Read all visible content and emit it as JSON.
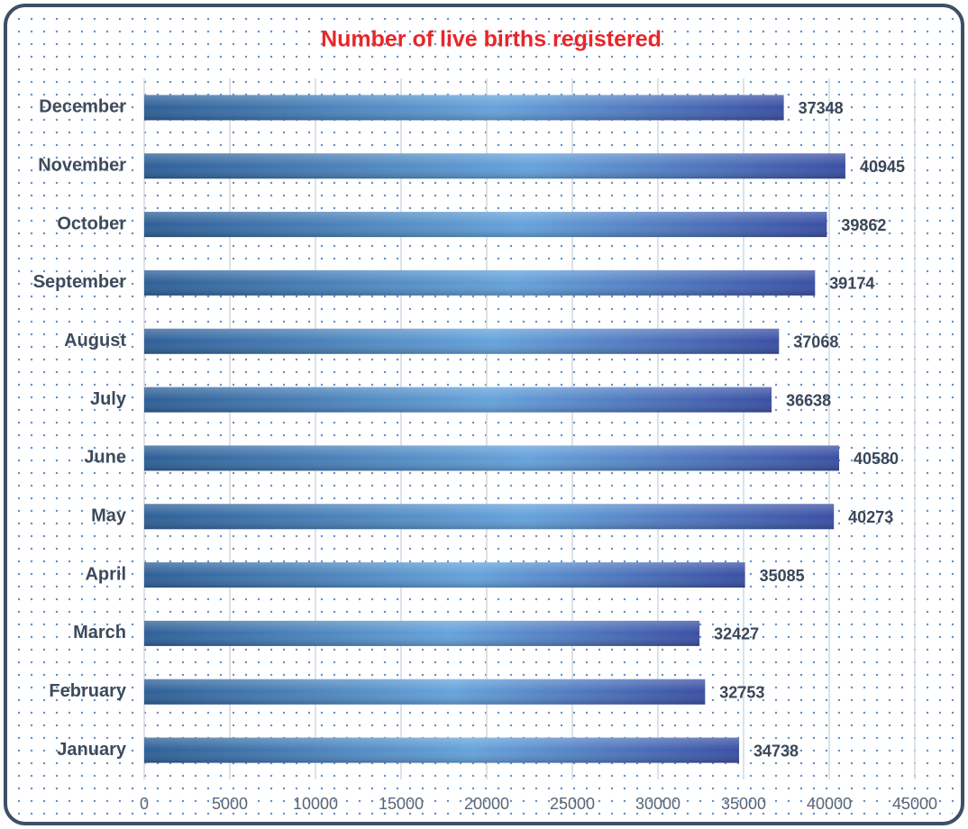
{
  "chart_data": {
    "type": "barh",
    "title": "Number of live births registered",
    "categories": [
      "January",
      "February",
      "March",
      "April",
      "May",
      "June",
      "July",
      "August",
      "September",
      "October",
      "November",
      "December"
    ],
    "values": [
      34738,
      32753,
      32427,
      35085,
      40273,
      40580,
      36638,
      37068,
      39174,
      39862,
      40945,
      37348
    ],
    "xlim": [
      0,
      45000
    ],
    "xticks": [
      0,
      5000,
      10000,
      15000,
      20000,
      25000,
      30000,
      35000,
      40000,
      45000
    ],
    "grid": true,
    "color": "#4a85c4"
  }
}
